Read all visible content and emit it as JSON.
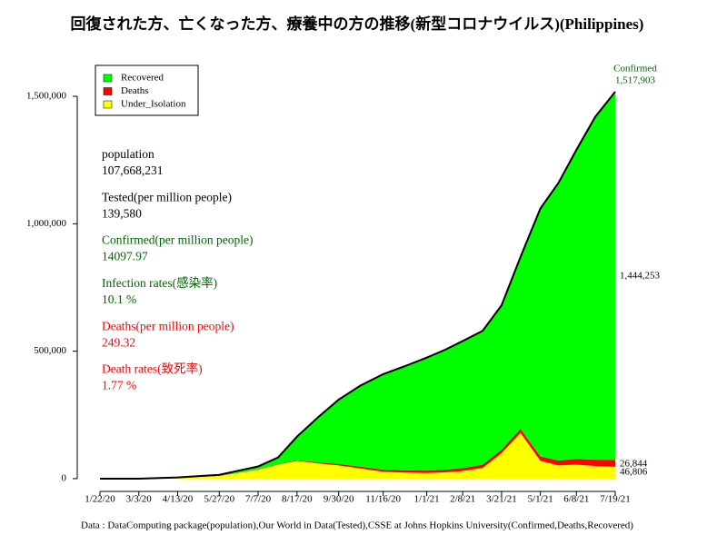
{
  "chart_data": {
    "type": "stacked_area",
    "title": "回復された方、亡くなった方、療養中の方の推移(新型コロナウイルス)(Philippines)",
    "source": "Data : DataComputing package(population),Our World in Data(Tested),CSSE at Johns Hopkins University(Confirmed,Deaths,Recovered)",
    "x": [
      "1/22/20",
      "3/3/20",
      "4/13/20",
      "5/27/20",
      "7/7/20",
      "7/28/20",
      "8/17/20",
      "9/8/20",
      "9/30/20",
      "10/23/20",
      "11/16/20",
      "12/8/20",
      "1/1/21",
      "1/20/21",
      "2/8/21",
      "3/1/21",
      "3/21/21",
      "4/10/21",
      "5/1/21",
      "5/20/21",
      "6/8/21",
      "6/28/21",
      "7/19/21"
    ],
    "xlim": [
      "1/22/20",
      "7/19/21"
    ],
    "xticks": [
      "1/22/20",
      "3/3/20",
      "4/13/20",
      "5/27/20",
      "7/7/20",
      "8/17/20",
      "9/30/20",
      "11/16/20",
      "1/1/21",
      "2/8/21",
      "3/21/21",
      "5/1/21",
      "6/8/21",
      "7/19/21"
    ],
    "ylim": [
      -50000,
      1550000
    ],
    "yticks": [
      {
        "value": 0,
        "label": "0"
      },
      {
        "value": 500000,
        "label": "500,000"
      },
      {
        "value": 1000000,
        "label": "1,000,000"
      },
      {
        "value": 1500000,
        "label": "1,500,000"
      }
    ],
    "legend": "top-left",
    "line_color": "#000000",
    "series": [
      {
        "name": "Recovered",
        "color": "#00ff00",
        "values": [
          0,
          2,
          203,
          3558,
          11700,
          26100,
          92300,
          176100,
          252500,
          318000,
          375100,
          407200,
          443700,
          470100,
          498600,
          525500,
          567100,
          674900,
          973000,
          1088700,
          1213000,
          1345800,
          1444253
        ],
        "value_labels": [
          null,
          null,
          null,
          null,
          null,
          null,
          null,
          null,
          null,
          null,
          null,
          null,
          null,
          null,
          null,
          null,
          null,
          null,
          null,
          null,
          null,
          null,
          "1,444,253"
        ]
      },
      {
        "name": "Deaths",
        "color": "#ff0000",
        "values": [
          0,
          1,
          297,
          942,
          1300,
          1900,
          2700,
          3900,
          5500,
          7000,
          7900,
          8800,
          9300,
          9900,
          11400,
          12500,
          12900,
          15100,
          17000,
          19300,
          22000,
          24200,
          26844
        ],
        "value_labels": [
          null,
          null,
          null,
          null,
          null,
          null,
          null,
          null,
          null,
          null,
          null,
          null,
          null,
          null,
          null,
          null,
          null,
          null,
          null,
          null,
          null,
          null,
          "26,844"
        ]
      },
      {
        "name": "Under_Isolation",
        "color": "#ffff00",
        "values": [
          0,
          0,
          4100,
          10500,
          35000,
          55000,
          70000,
          60000,
          52000,
          40000,
          27000,
          24000,
          22000,
          25000,
          30000,
          42000,
          100000,
          180000,
          70000,
          52000,
          55000,
          50000,
          46806
        ],
        "value_labels": [
          null,
          null,
          null,
          null,
          null,
          null,
          null,
          null,
          null,
          null,
          null,
          null,
          null,
          null,
          null,
          null,
          null,
          null,
          null,
          null,
          null,
          null,
          "46,806"
        ]
      }
    ],
    "total_annotation": {
      "text": "Confirmed",
      "value": 1517903,
      "label": "1,517,903",
      "color": "#006400"
    },
    "stats": [
      {
        "label": "population",
        "value": "107,668,231",
        "color": "#000000"
      },
      {
        "label": "Tested(per million people)",
        "value": "139,580",
        "color": "#000000"
      },
      {
        "label": "Confirmed(per million people)",
        "value": "14097.97",
        "color": "#006400"
      },
      {
        "label": "Infection rates(感染率)",
        "value": "10.1 %",
        "color": "#006400"
      },
      {
        "label": "Deaths(per million people)",
        "value": "249.32",
        "color": "#ff0000"
      },
      {
        "label": "Death rates(致死率)",
        "value": "1.77 %",
        "color": "#ff0000"
      }
    ]
  }
}
